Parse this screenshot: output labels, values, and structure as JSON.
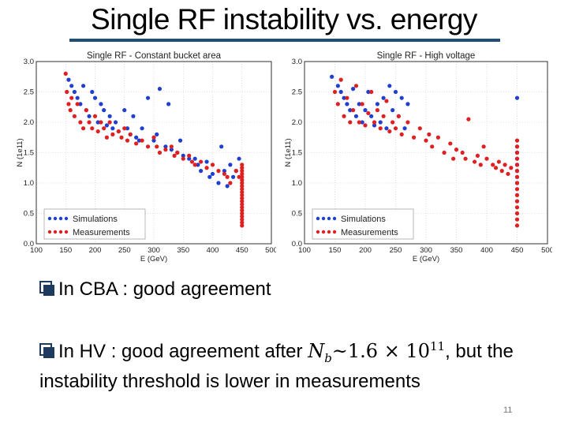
{
  "slide": {
    "title": "Single RF instability vs. energy",
    "bullet1": "In CBA : good agreement",
    "bullet2_before": "In HV : good agreement after ",
    "bullet2_math": "N",
    "bullet2_sub": "b",
    "bullet2_approx": "~1.6 × 10",
    "bullet2_exp": "11",
    "bullet2_after": ", but the",
    "bullet2_line2": "instability threshold is lower in measurements",
    "page_number": "11"
  },
  "chart_data": [
    {
      "type": "scatter",
      "title": "Single RF - Constant bucket area",
      "xlabel": "E (GeV)",
      "ylabel": "N (1e11)",
      "xlim": [
        100,
        500
      ],
      "ylim": [
        0.0,
        3.0
      ],
      "xticks": [
        "100",
        "150",
        "200",
        "250",
        "300",
        "350",
        "400",
        "450",
        "500"
      ],
      "yticks": [
        "0.0",
        "0.5",
        "1.0",
        "1.5",
        "2.0",
        "2.5",
        "3.0"
      ],
      "grid": true,
      "legend": "bottom-left",
      "series": [
        {
          "name": "Simulations",
          "color": "#1f3fd0",
          "points": [
            [
              155,
              2.7
            ],
            [
              160,
              2.6
            ],
            [
              165,
              2.5
            ],
            [
              170,
              2.4
            ],
            [
              175,
              2.3
            ],
            [
              180,
              2.6
            ],
            [
              185,
              2.2
            ],
            [
              190,
              2.1
            ],
            [
              195,
              2.5
            ],
            [
              200,
              2.4
            ],
            [
              205,
              2.0
            ],
            [
              210,
              2.3
            ],
            [
              215,
              2.2
            ],
            [
              220,
              1.95
            ],
            [
              225,
              2.1
            ],
            [
              230,
              1.9
            ],
            [
              235,
              2.0
            ],
            [
              240,
              1.85
            ],
            [
              250,
              2.2
            ],
            [
              255,
              1.9
            ],
            [
              260,
              1.8
            ],
            [
              265,
              2.1
            ],
            [
              270,
              1.75
            ],
            [
              275,
              1.7
            ],
            [
              280,
              1.9
            ],
            [
              290,
              2.4
            ],
            [
              300,
              1.7
            ],
            [
              305,
              1.8
            ],
            [
              310,
              2.55
            ],
            [
              320,
              1.6
            ],
            [
              325,
              2.3
            ],
            [
              330,
              1.55
            ],
            [
              340,
              1.5
            ],
            [
              345,
              1.7
            ],
            [
              350,
              1.45
            ],
            [
              360,
              1.4
            ],
            [
              370,
              1.4
            ],
            [
              375,
              1.3
            ],
            [
              380,
              1.2
            ],
            [
              390,
              1.35
            ],
            [
              395,
              1.1
            ],
            [
              400,
              1.15
            ],
            [
              410,
              1.0
            ],
            [
              415,
              1.6
            ],
            [
              420,
              1.2
            ],
            [
              425,
              0.95
            ],
            [
              430,
              1.3
            ],
            [
              435,
              1.1
            ],
            [
              440,
              1.2
            ],
            [
              445,
              1.4
            ]
          ]
        },
        {
          "name": "Measurements",
          "color": "#e02020",
          "points": [
            [
              150,
              2.8
            ],
            [
              152,
              2.5
            ],
            [
              155,
              2.3
            ],
            [
              158,
              2.2
            ],
            [
              160,
              2.4
            ],
            [
              165,
              2.1
            ],
            [
              170,
              2.3
            ],
            [
              175,
              2.0
            ],
            [
              180,
              1.9
            ],
            [
              185,
              2.2
            ],
            [
              190,
              2.0
            ],
            [
              195,
              1.9
            ],
            [
              200,
              2.1
            ],
            [
              205,
              1.85
            ],
            [
              210,
              2.0
            ],
            [
              215,
              1.9
            ],
            [
              220,
              1.75
            ],
            [
              225,
              2.0
            ],
            [
              230,
              1.8
            ],
            [
              240,
              1.85
            ],
            [
              245,
              1.75
            ],
            [
              250,
              1.9
            ],
            [
              255,
              1.7
            ],
            [
              260,
              1.8
            ],
            [
              270,
              1.65
            ],
            [
              280,
              1.7
            ],
            [
              290,
              1.6
            ],
            [
              300,
              1.75
            ],
            [
              305,
              1.6
            ],
            [
              310,
              1.5
            ],
            [
              320,
              1.55
            ],
            [
              330,
              1.6
            ],
            [
              335,
              1.45
            ],
            [
              340,
              1.5
            ],
            [
              350,
              1.4
            ],
            [
              360,
              1.45
            ],
            [
              365,
              1.35
            ],
            [
              370,
              1.3
            ],
            [
              380,
              1.35
            ],
            [
              390,
              1.25
            ],
            [
              400,
              1.3
            ],
            [
              410,
              1.2
            ],
            [
              420,
              1.15
            ],
            [
              425,
              1.1
            ],
            [
              430,
              1.0
            ],
            [
              440,
              1.2
            ],
            [
              445,
              1.1
            ],
            [
              450,
              1.3
            ],
            [
              450,
              1.25
            ],
            [
              450,
              1.2
            ],
            [
              450,
              1.15
            ],
            [
              450,
              1.1
            ],
            [
              450,
              1.05
            ],
            [
              450,
              1.0
            ],
            [
              450,
              0.95
            ],
            [
              450,
              0.9
            ],
            [
              450,
              0.85
            ],
            [
              450,
              0.8
            ],
            [
              450,
              0.75
            ],
            [
              450,
              0.7
            ],
            [
              450,
              0.65
            ],
            [
              450,
              0.6
            ],
            [
              450,
              0.55
            ],
            [
              450,
              0.5
            ],
            [
              450,
              0.45
            ],
            [
              450,
              0.4
            ],
            [
              450,
              0.35
            ],
            [
              450,
              0.3
            ]
          ]
        }
      ]
    },
    {
      "type": "scatter",
      "title": "Single RF - High voltage",
      "xlabel": "E (GeV)",
      "ylabel": "N (1e11)",
      "xlim": [
        100,
        500
      ],
      "ylim": [
        0.0,
        3.0
      ],
      "xticks": [
        "100",
        "150",
        "200",
        "250",
        "300",
        "350",
        "400",
        "450",
        "500"
      ],
      "yticks": [
        "0.0",
        "0.5",
        "1.0",
        "1.5",
        "2.0",
        "2.5",
        "3.0"
      ],
      "grid": true,
      "legend": "bottom-left",
      "series": [
        {
          "name": "Simulations",
          "color": "#1f3fd0",
          "points": [
            [
              145,
              2.75
            ],
            [
              155,
              2.6
            ],
            [
              160,
              2.5
            ],
            [
              165,
              2.4
            ],
            [
              170,
              2.3
            ],
            [
              175,
              2.2
            ],
            [
              180,
              2.55
            ],
            [
              185,
              2.1
            ],
            [
              190,
              2.3
            ],
            [
              195,
              2.0
            ],
            [
              200,
              2.2
            ],
            [
              205,
              2.5
            ],
            [
              210,
              2.1
            ],
            [
              215,
              1.95
            ],
            [
              220,
              2.3
            ],
            [
              225,
              2.0
            ],
            [
              230,
              2.4
            ],
            [
              235,
              1.9
            ],
            [
              240,
              2.6
            ],
            [
              245,
              2.2
            ],
            [
              250,
              2.5
            ],
            [
              255,
              2.1
            ],
            [
              260,
              2.4
            ],
            [
              265,
              1.9
            ],
            [
              270,
              2.3
            ],
            [
              450,
              2.4
            ],
            [
              450,
              1.6
            ],
            [
              450,
              1.5
            ],
            [
              450,
              1.4
            ],
            [
              450,
              1.3
            ],
            [
              450,
              1.2
            ],
            [
              450,
              1.1
            ],
            [
              450,
              1.0
            ]
          ]
        },
        {
          "name": "Measurements",
          "color": "#e02020",
          "points": [
            [
              150,
              2.5
            ],
            [
              155,
              2.3
            ],
            [
              160,
              2.7
            ],
            [
              165,
              2.1
            ],
            [
              170,
              2.4
            ],
            [
              175,
              2.0
            ],
            [
              180,
              2.2
            ],
            [
              185,
              2.6
            ],
            [
              190,
              2.0
            ],
            [
              195,
              2.3
            ],
            [
              200,
              1.95
            ],
            [
              205,
              2.15
            ],
            [
              210,
              2.5
            ],
            [
              215,
              2.0
            ],
            [
              220,
              2.2
            ],
            [
              225,
              1.9
            ],
            [
              230,
              2.1
            ],
            [
              235,
              2.35
            ],
            [
              240,
              1.85
            ],
            [
              245,
              2.0
            ],
            [
              250,
              1.9
            ],
            [
              255,
              2.1
            ],
            [
              260,
              1.8
            ],
            [
              270,
              2.0
            ],
            [
              280,
              1.75
            ],
            [
              290,
              1.9
            ],
            [
              300,
              1.7
            ],
            [
              305,
              1.8
            ],
            [
              310,
              1.6
            ],
            [
              320,
              1.75
            ],
            [
              330,
              1.5
            ],
            [
              340,
              1.65
            ],
            [
              345,
              1.4
            ],
            [
              350,
              1.55
            ],
            [
              360,
              1.5
            ],
            [
              365,
              1.4
            ],
            [
              370,
              2.05
            ],
            [
              380,
              1.35
            ],
            [
              385,
              1.45
            ],
            [
              390,
              1.3
            ],
            [
              395,
              1.6
            ],
            [
              400,
              1.4
            ],
            [
              410,
              1.3
            ],
            [
              415,
              1.25
            ],
            [
              420,
              1.35
            ],
            [
              425,
              1.2
            ],
            [
              430,
              1.3
            ],
            [
              435,
              1.15
            ],
            [
              440,
              1.25
            ],
            [
              450,
              1.7
            ],
            [
              450,
              1.6
            ],
            [
              450,
              1.5
            ],
            [
              450,
              1.4
            ],
            [
              450,
              1.3
            ],
            [
              450,
              1.2
            ],
            [
              450,
              1.1
            ],
            [
              450,
              1.0
            ],
            [
              450,
              0.9
            ],
            [
              450,
              0.8
            ],
            [
              450,
              0.7
            ],
            [
              450,
              0.6
            ],
            [
              450,
              0.5
            ],
            [
              450,
              0.4
            ],
            [
              450,
              0.3
            ]
          ]
        }
      ]
    }
  ]
}
